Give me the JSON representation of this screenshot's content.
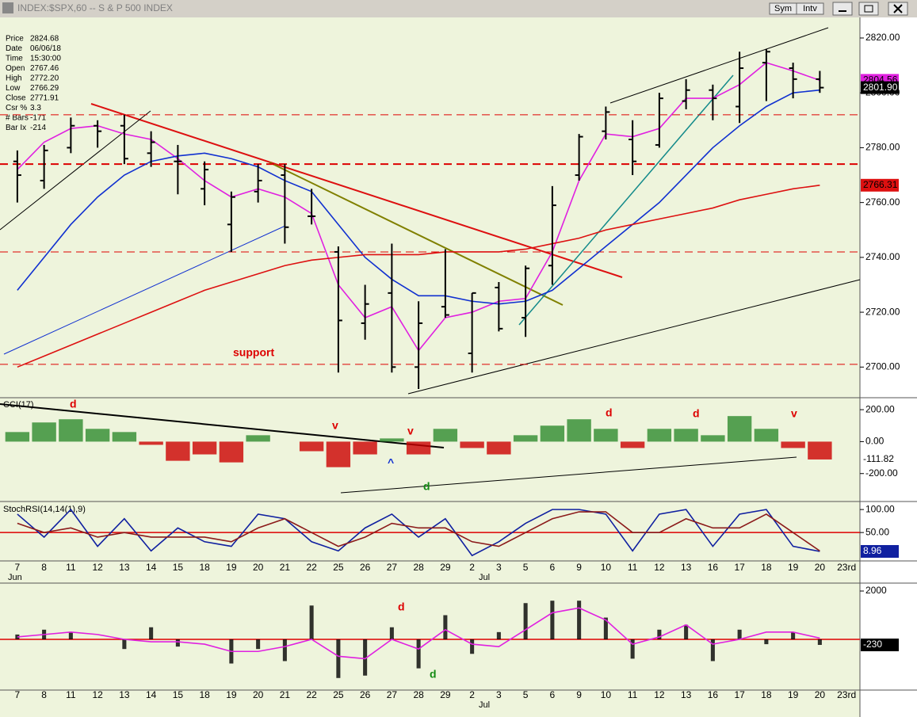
{
  "window": {
    "title": "INDEX:$SPX,60 -- S & P 500 INDEX",
    "buttons": [
      "Sym",
      "Intv"
    ]
  },
  "info_box": [
    [
      "Price",
      "2824.68"
    ],
    [
      "Date",
      "06/06/18"
    ],
    [
      "Time",
      "15:30:00"
    ],
    [
      "Open",
      "2767.46"
    ],
    [
      "High",
      "2772.20"
    ],
    [
      "Low",
      "2766.29"
    ],
    [
      "Close",
      "2771.91"
    ],
    [
      "Csr %",
      "3.3"
    ],
    [
      "# Bars",
      "-171"
    ],
    [
      "Bar Ix",
      "-214"
    ]
  ],
  "chart_data": [
    {
      "type": "ohlc",
      "months": [
        "Jun",
        "Jul"
      ],
      "categories": [
        "7",
        "8",
        "11",
        "12",
        "13",
        "14",
        "15",
        "18",
        "19",
        "20",
        "21",
        "22",
        "25",
        "26",
        "27",
        "28",
        "29",
        "2",
        "3",
        "5",
        "6",
        "9",
        "10",
        "11",
        "12",
        "13",
        "16",
        "17",
        "18",
        "19",
        "20",
        "23rd"
      ],
      "ylim": [
        2689.4,
        2827.5
      ],
      "yticks": [
        {
          "value": 2700,
          "label": "2700.00"
        },
        {
          "value": 2720,
          "label": "2720.00"
        },
        {
          "value": 2740,
          "label": "2740.00"
        },
        {
          "value": 2760,
          "label": "2760.00"
        },
        {
          "value": 2780,
          "label": "2780.00"
        },
        {
          "value": 2800,
          "label": "2800.00"
        },
        {
          "value": 2820,
          "label": "2820.00"
        }
      ],
      "color": "#000000",
      "open": [
        2775,
        2768,
        2780,
        2788,
        2788,
        2778,
        2775,
        2765,
        2752,
        2764,
        2770,
        2755,
        2742,
        2716,
        2727,
        2700,
        2722,
        2705,
        2729,
        2718,
        2737,
        2770,
        2786,
        2783,
        2781,
        2797,
        2801,
        2795,
        2811,
        2809,
        2805,
        null
      ],
      "high": [
        2779,
        2781,
        2791,
        2790,
        2792,
        2786,
        2781,
        2775,
        2764,
        2774,
        2774,
        2765,
        2744,
        2730,
        2745,
        2724,
        2743,
        2727,
        2731,
        2737,
        2766,
        2785,
        2795,
        2790,
        2800,
        2805,
        2803,
        2815,
        2816,
        2811,
        2808,
        null
      ],
      "low": [
        2760,
        2765,
        2778,
        2780,
        2774,
        2773,
        2763,
        2759,
        2742,
        2760,
        2745,
        2752,
        2698,
        2710,
        2698,
        2692,
        2718,
        2698,
        2713,
        2711,
        2730,
        2768,
        2783,
        2770,
        2780,
        2794,
        2790,
        2789,
        2797,
        2798,
        2800,
        null
      ],
      "close": [
        2770,
        2779,
        2788,
        2786,
        2776,
        2782,
        2775,
        2772,
        2762,
        2768,
        2751,
        2755,
        2717,
        2723,
        2700,
        2716,
        2719,
        2727,
        2714,
        2736,
        2759,
        2784,
        2793,
        2775,
        2798,
        2801,
        2798,
        2809,
        2815,
        2805,
        2801.9,
        null
      ],
      "value_labels": [
        null,
        null,
        null,
        null,
        null,
        null,
        null,
        null,
        null,
        null,
        null,
        null,
        null,
        null,
        null,
        null,
        null,
        null,
        null,
        null,
        null,
        null,
        null,
        null,
        null,
        null,
        null,
        null,
        null,
        null,
        "2801.90",
        null
      ],
      "levels": [
        2792,
        2774,
        2742,
        2701
      ],
      "level_color": "#dd0000",
      "annotation": "support",
      "series": [
        {
          "color": "#e020e0",
          "last_value_box": true,
          "values": [
            2772,
            2782,
            2787,
            2788,
            2785,
            2783,
            2776,
            2768,
            2762,
            2765,
            2762,
            2756,
            2730,
            2718,
            2722,
            2706,
            2718,
            2720,
            2724,
            2725,
            2742,
            2768,
            2785,
            2784,
            2787,
            2798,
            2798,
            2803,
            2811,
            2808,
            2804.56,
            null
          ]
        },
        {
          "color": "#1030d0",
          "last_value_box": false,
          "values": [
            2728,
            2740,
            2752,
            2762,
            2770,
            2775,
            2777,
            2778,
            2776,
            2773,
            2768,
            2764,
            2752,
            2740,
            2732,
            2726,
            2726,
            2724,
            2723,
            2724,
            2728,
            2736,
            2744,
            2752,
            2760,
            2770,
            2780,
            2788,
            2795,
            2800,
            2801,
            null
          ]
        },
        {
          "color": "#dd1010",
          "last_value_box": true,
          "values": [
            2700,
            2704,
            2708,
            2712,
            2716,
            2720,
            2724,
            2728,
            2731,
            2734,
            2737,
            2739,
            2740,
            2741,
            2741,
            2741,
            2742,
            2742,
            2742,
            2743,
            2745,
            2747,
            2750,
            2752,
            2754,
            2756,
            2758,
            2761,
            2763,
            2765,
            2766.31,
            null
          ]
        }
      ]
    },
    {
      "type": "bar",
      "title": "CCI(17)",
      "ylim": [
        -370,
        265
      ],
      "yticks": [
        {
          "value": 200,
          "label": "200.00"
        },
        {
          "value": 0,
          "label": "0.00"
        },
        {
          "value": -200,
          "label": "-200.00"
        }
      ],
      "positive_color": "#2e8b2e",
      "negative_color": "#cc0000",
      "values": [
        60,
        120,
        140,
        80,
        60,
        -20,
        -120,
        -80,
        -130,
        40,
        0,
        -60,
        -160,
        -80,
        20,
        -80,
        80,
        -40,
        -80,
        40,
        100,
        140,
        80,
        -40,
        80,
        80,
        40,
        160,
        80,
        -40,
        -111.82,
        null
      ],
      "annotations": [
        {
          "text": "d",
          "color": "#dd0000"
        },
        {
          "text": "v",
          "color": "#dd0000"
        },
        {
          "text": "v",
          "color": "#dd0000"
        },
        {
          "text": "^",
          "color": "#1030d0"
        },
        {
          "text": "d",
          "color": "#138a13"
        },
        {
          "text": "d",
          "color": "#dd0000"
        },
        {
          "text": "d",
          "color": "#dd0000"
        },
        {
          "text": "v",
          "color": "#dd0000"
        }
      ]
    },
    {
      "type": "line",
      "title": "StochRSI(14,14(1),9)",
      "ylim": [
        -10,
        114
      ],
      "yticks": [
        {
          "value": 100,
          "label": "100.00"
        },
        {
          "value": 50,
          "label": "50.00"
        }
      ],
      "ref_line": 50,
      "series": [
        {
          "color": "#1020a0",
          "last_value_box": true,
          "values": [
            90,
            40,
            100,
            20,
            80,
            10,
            60,
            30,
            20,
            90,
            80,
            30,
            10,
            60,
            90,
            40,
            80,
            0,
            30,
            70,
            100,
            100,
            90,
            10,
            90,
            100,
            20,
            90,
            100,
            20,
            8.96,
            null
          ]
        },
        {
          "color": "#8b1a1a",
          "last_value_box": false,
          "values": [
            70,
            50,
            60,
            40,
            50,
            40,
            40,
            40,
            30,
            60,
            80,
            50,
            20,
            40,
            70,
            60,
            60,
            30,
            20,
            50,
            80,
            95,
            95,
            50,
            50,
            80,
            60,
            60,
            90,
            50,
            10,
            null
          ]
        }
      ]
    },
    {
      "type": "bar",
      "ylim": [
        -2066,
        2262
      ],
      "yticks": [
        2000
      ],
      "ref_line": 0,
      "annotations": [
        {
          "text": "d",
          "color": "#dd0000"
        },
        {
          "text": "d",
          "color": "#138a13"
        }
      ],
      "series": [
        {
          "type": "bar",
          "color": "#000000",
          "last_value_box": true,
          "values": [
            200,
            400,
            300,
            0,
            -400,
            500,
            -300,
            0,
            -1000,
            -400,
            -900,
            1400,
            -1600,
            -1500,
            500,
            -1200,
            1000,
            -600,
            300,
            1500,
            1600,
            1600,
            900,
            -800,
            400,
            600,
            -900,
            400,
            -200,
            300,
            -230,
            null
          ]
        },
        {
          "type": "line",
          "color": "#e020e0",
          "last_value_box": false,
          "values": [
            100,
            200,
            300,
            200,
            0,
            -100,
            -100,
            -200,
            -500,
            -500,
            -300,
            0,
            -700,
            -800,
            0,
            -400,
            400,
            -200,
            -300,
            400,
            1100,
            1300,
            800,
            -200,
            100,
            600,
            -200,
            0,
            300,
            300,
            50,
            null
          ]
        }
      ]
    }
  ]
}
